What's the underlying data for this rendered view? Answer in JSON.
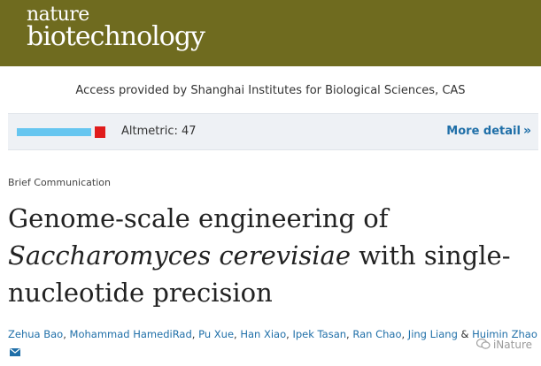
{
  "masthead": {
    "logo_line1": "nature",
    "logo_line2": "biotechnology",
    "background": "#6f6b1f"
  },
  "access_text": "Access provided by Shanghai Institutes for Biological Sciences, CAS",
  "metrics": {
    "altmetric_label": "Altmetric: 47",
    "more_detail": "More detail",
    "badge_colors": [
      "#66c6f0",
      "#e01c1c"
    ]
  },
  "article": {
    "type": "Brief Communication",
    "title_part1": "Genome-scale engineering of",
    "title_italic": "Saccharomyces cerevisiae",
    "title_part2": "with single-nucleotide precision",
    "authors": [
      "Zehua Bao",
      "Mohammad HamediRad",
      "Pu Xue",
      "Han Xiao",
      "Ipek Tasan",
      "Ran Chao",
      "Jing Liang",
      "Huimin Zhao"
    ],
    "corresponding_icon": "envelope-icon"
  },
  "watermark": {
    "text": "iNature",
    "icon": "wechat-icon"
  },
  "colors": {
    "link": "#1f6fa8"
  }
}
